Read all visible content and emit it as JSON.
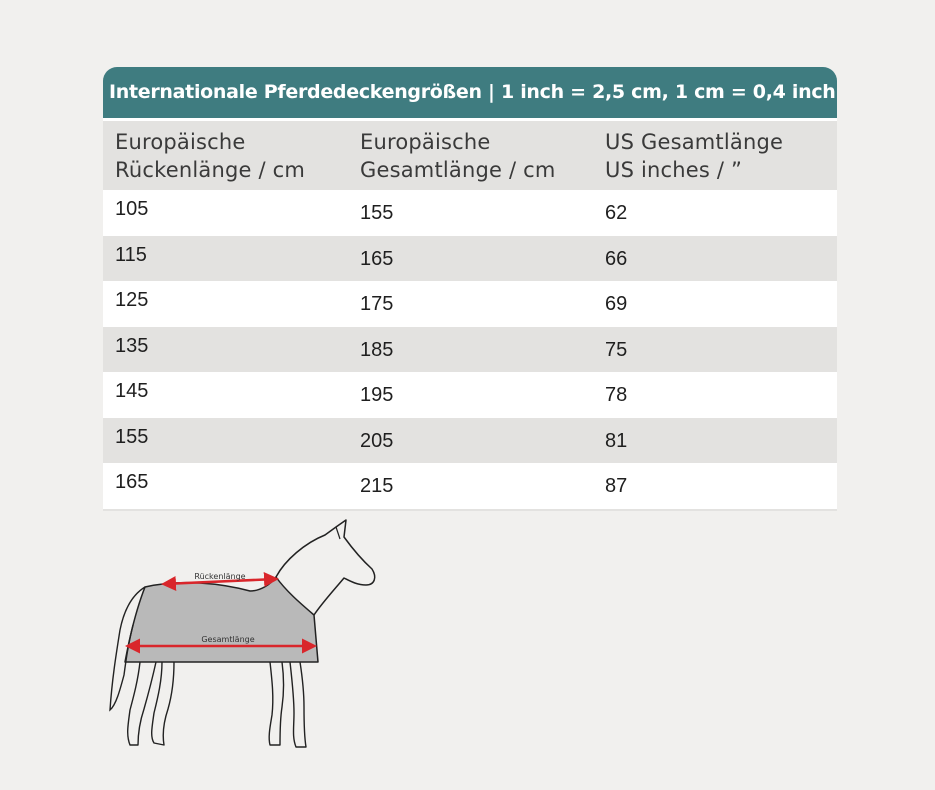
{
  "table": {
    "title": "Internationale Pferdedeckengrößen | 1 inch = 2,5 cm, 1 cm = 0,4 inch",
    "headers": [
      "Europäische\nRückenlänge / cm",
      "Europäische\nGesamtlänge / cm",
      "US Gesamtlänge\nUS inches / ”"
    ],
    "rows": [
      [
        "105",
        "155",
        "62"
      ],
      [
        "115",
        "165",
        "66"
      ],
      [
        "125",
        "175",
        "69"
      ],
      [
        "135",
        "185",
        "75"
      ],
      [
        "145",
        "195",
        "78"
      ],
      [
        "155",
        "205",
        "81"
      ],
      [
        "165",
        "215",
        "87"
      ]
    ]
  },
  "illustration": {
    "back_length_label": "Rückenlänge",
    "total_length_label": "Gesamtlänge",
    "blanket_color": "#b9b9b9",
    "arrow_color": "#d9262b"
  }
}
